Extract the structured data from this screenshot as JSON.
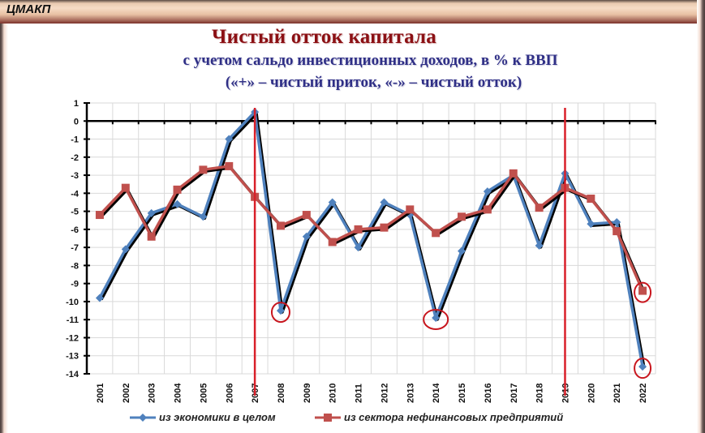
{
  "header": {
    "logo": "ЦМАКП"
  },
  "title": "Чистый отток капитала",
  "subtitle_line1": "с учетом сальдо инвестиционных доходов, в % к ВВП",
  "subtitle_line2": "(«+» – чистый приток, «-» – чистый отток)",
  "legend": {
    "series1": "из экономики в целом",
    "series2": "из сектора нефинансовых предприятий"
  },
  "colors": {
    "series1": "#4f81bd",
    "series2": "#c0504d",
    "title": "#8b1014",
    "subtitle": "#2f2f86",
    "marker_lines": "#d9202a",
    "highlight_circles": "#c8161e"
  },
  "chart_data": {
    "type": "line",
    "title": "Чистый отток капитала",
    "subtitle": "с учетом сальдо инвестиционных доходов, в % к ВВП («+» – чистый приток, «-» – чистый отток)",
    "xlabel": "",
    "ylabel": "",
    "ylim": [
      -14,
      1
    ],
    "yticks": [
      1,
      0,
      -1,
      -2,
      -3,
      -4,
      -5,
      -6,
      -7,
      -8,
      -9,
      -10,
      -11,
      -12,
      -13,
      -14
    ],
    "grid": true,
    "legend_position": "bottom",
    "categories": [
      "2001",
      "2002",
      "2003",
      "2004",
      "2005",
      "2006",
      "2007",
      "2008",
      "2009",
      "2010",
      "2011",
      "2012",
      "2013",
      "2014",
      "2015",
      "2016",
      "2017",
      "2018",
      "2019",
      "2020",
      "2021",
      "2022"
    ],
    "series": [
      {
        "name": "из экономики в целом",
        "marker": "diamond",
        "color": "#4f81bd",
        "values": [
          -9.8,
          -7.1,
          -5.1,
          -4.6,
          -5.3,
          -1.0,
          0.5,
          -10.5,
          -6.4,
          -4.5,
          -7.0,
          -4.5,
          -5.2,
          -10.9,
          -7.2,
          -3.9,
          -3.0,
          -6.9,
          -2.9,
          -5.7,
          -5.6,
          -13.6
        ]
      },
      {
        "name": "из сектора нефинансовых предприятий",
        "marker": "square",
        "color": "#c0504d",
        "values": [
          -5.2,
          -3.7,
          -6.4,
          -3.8,
          -2.7,
          -2.5,
          -4.2,
          -5.8,
          -5.2,
          -6.7,
          -6.0,
          -5.9,
          -4.9,
          -6.2,
          -5.3,
          -4.9,
          -2.9,
          -4.8,
          -3.7,
          -4.3,
          -6.1,
          -9.4
        ]
      }
    ],
    "annotations": {
      "vertical_lines_at": [
        "2007",
        "2019"
      ],
      "circled_points": [
        {
          "series": "из экономики в целом",
          "category": "2008"
        },
        {
          "series": "из экономики в целом",
          "category": "2014"
        },
        {
          "series": "из экономики в целом",
          "category": "2022"
        },
        {
          "series": "из сектора нефинансовых предприятий",
          "category": "2022"
        }
      ]
    }
  }
}
